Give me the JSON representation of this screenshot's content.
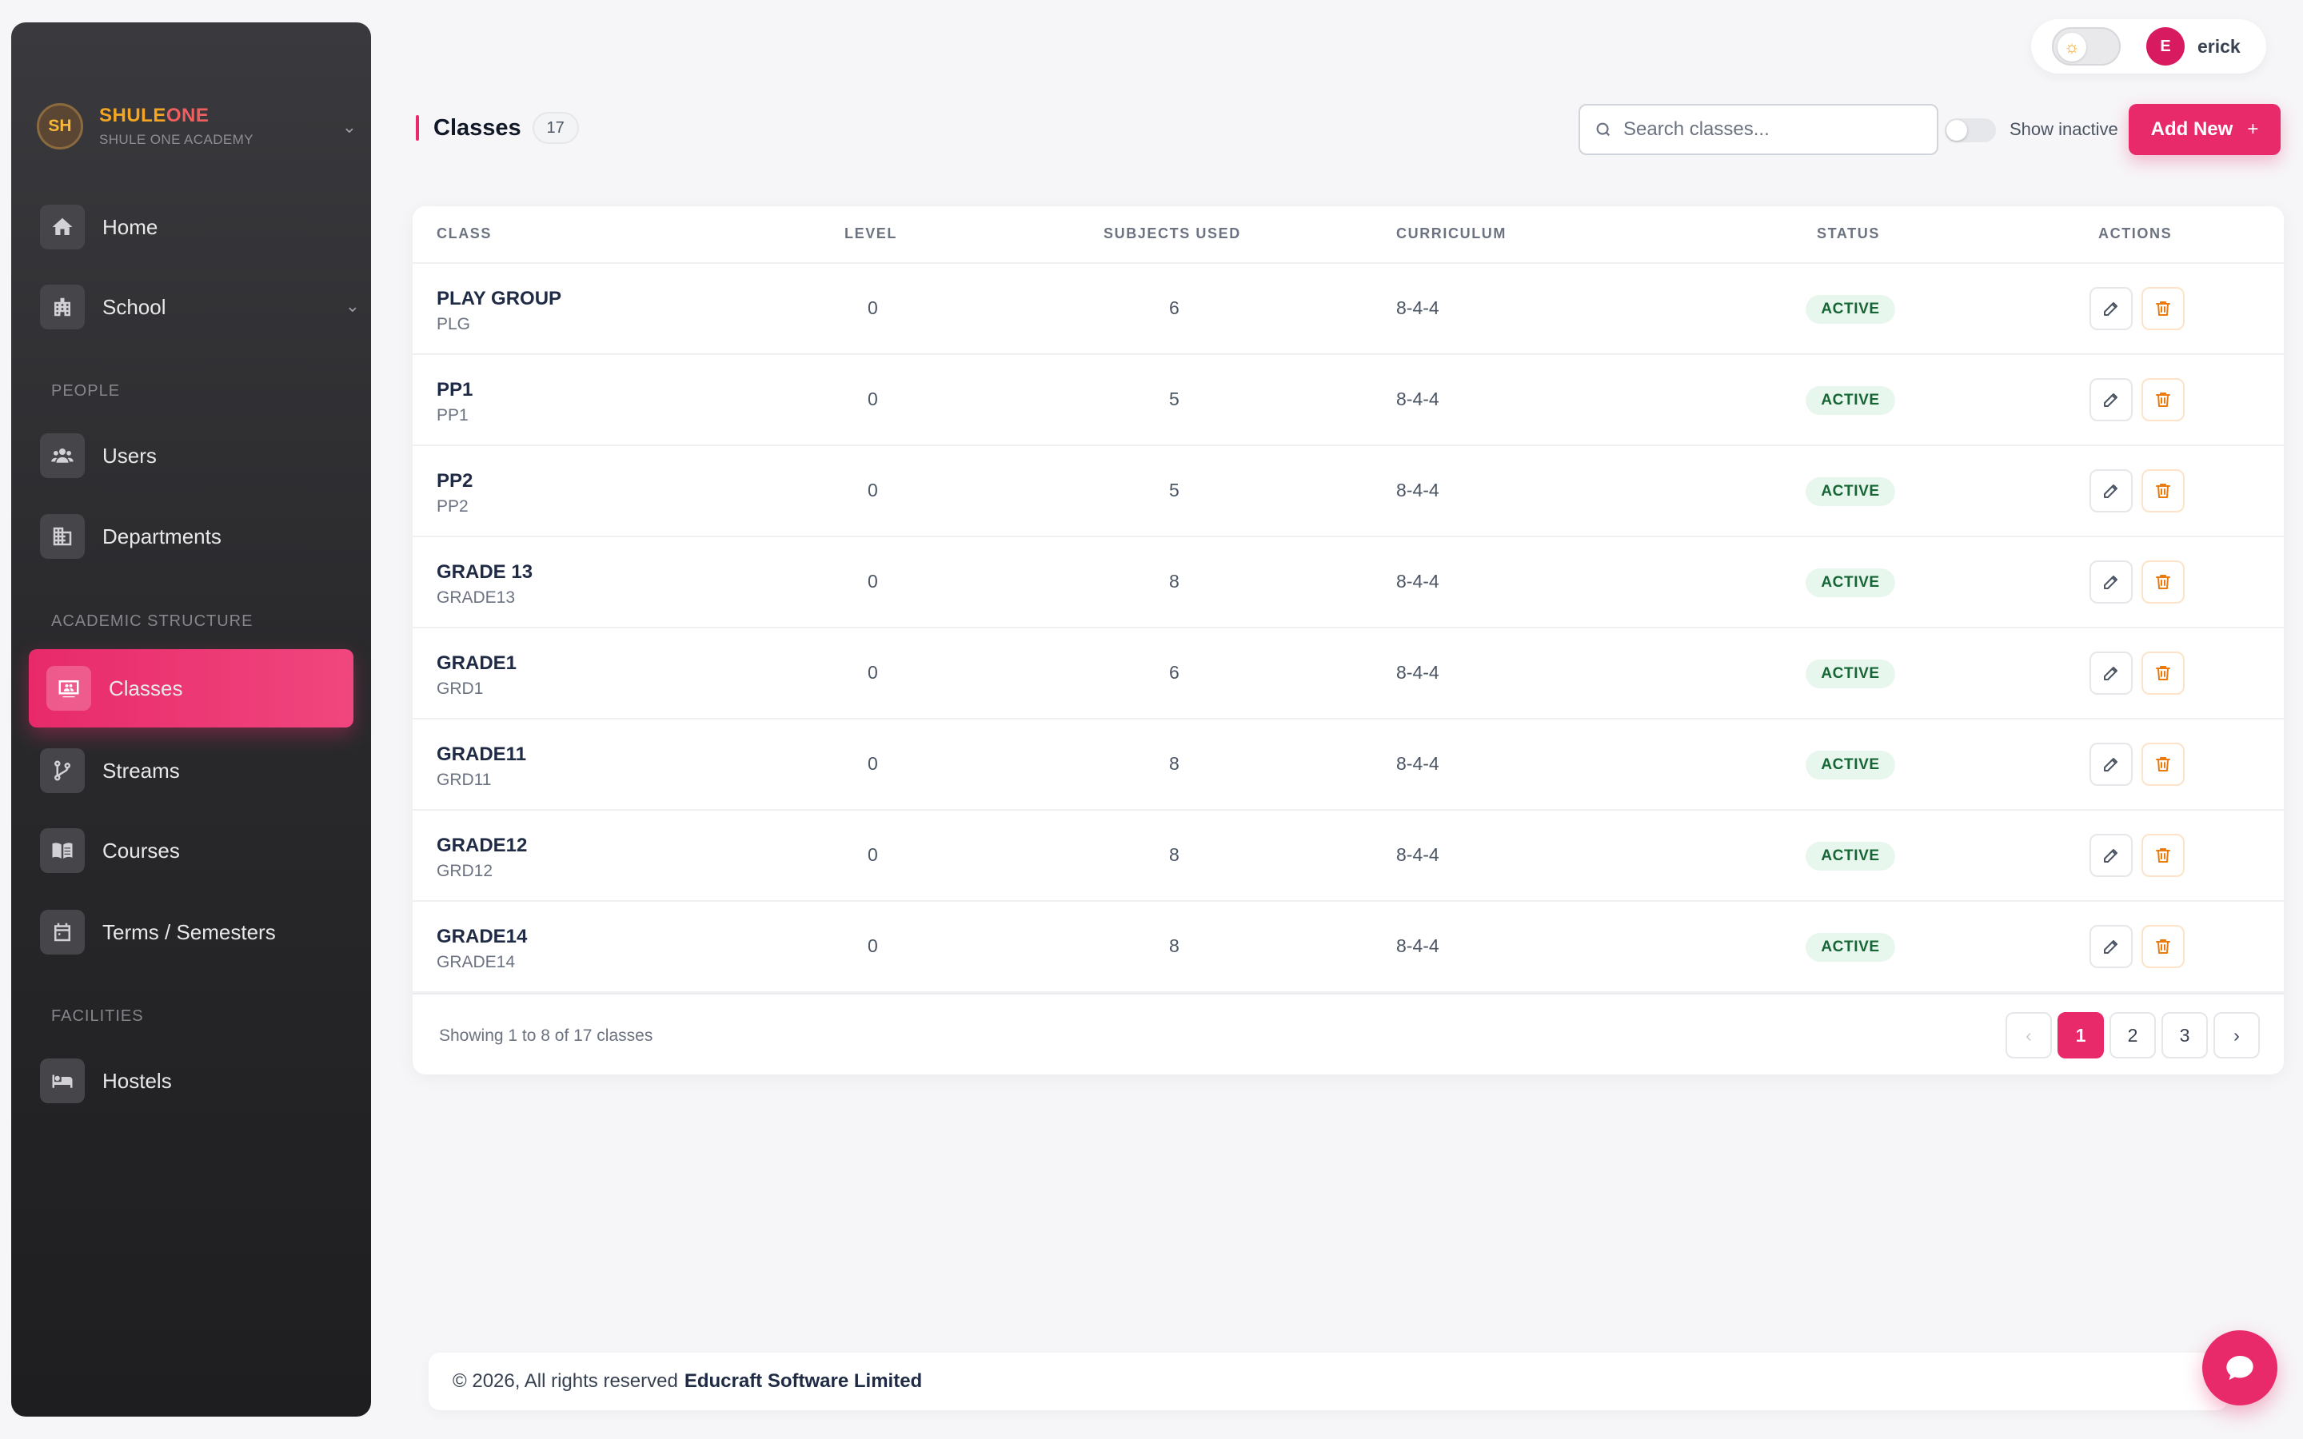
{
  "brand": {
    "initials": "SH",
    "name_a": "SHULE",
    "name_b": "ONE",
    "subtitle": "SHULE ONE ACADEMY"
  },
  "sidebar": {
    "items": [
      {
        "label": "Home",
        "icon": "home-icon"
      },
      {
        "label": "School",
        "icon": "building-icon"
      },
      {
        "label": "Users",
        "icon": "users-icon"
      },
      {
        "label": "Departments",
        "icon": "departments-icon"
      },
      {
        "label": "Classes",
        "icon": "classroom-icon",
        "active": true
      },
      {
        "label": "Streams",
        "icon": "branch-icon"
      },
      {
        "label": "Courses",
        "icon": "book-icon"
      },
      {
        "label": "Terms / Semesters",
        "icon": "calendar-icon"
      },
      {
        "label": "Hostels",
        "icon": "bed-icon"
      }
    ],
    "sections": {
      "people": "PEOPLE",
      "academic": "ACADEMIC STRUCTURE",
      "facilities": "FACILITIES"
    }
  },
  "user": {
    "initial": "E",
    "name": "erick"
  },
  "page": {
    "title": "Classes",
    "count": "17"
  },
  "toolbar": {
    "search_placeholder": "Search classes...",
    "show_inactive_label": "Show inactive",
    "add_label": "Add New",
    "add_plus": "+"
  },
  "table": {
    "headers": [
      "CLASS",
      "LEVEL",
      "SUBJECTS USED",
      "CURRICULUM",
      "STATUS",
      "ACTIONS"
    ],
    "rows": [
      {
        "name": "PLAY GROUP",
        "code": "PLG",
        "level": "0",
        "subjects": "6",
        "curriculum": "8-4-4",
        "status": "ACTIVE"
      },
      {
        "name": "PP1",
        "code": "PP1",
        "level": "0",
        "subjects": "5",
        "curriculum": "8-4-4",
        "status": "ACTIVE"
      },
      {
        "name": "PP2",
        "code": "PP2",
        "level": "0",
        "subjects": "5",
        "curriculum": "8-4-4",
        "status": "ACTIVE"
      },
      {
        "name": "GRADE 13",
        "code": "GRADE13",
        "level": "0",
        "subjects": "8",
        "curriculum": "8-4-4",
        "status": "ACTIVE"
      },
      {
        "name": "GRADE1",
        "code": "GRD1",
        "level": "0",
        "subjects": "6",
        "curriculum": "8-4-4",
        "status": "ACTIVE"
      },
      {
        "name": "GRADE11",
        "code": "GRD11",
        "level": "0",
        "subjects": "8",
        "curriculum": "8-4-4",
        "status": "ACTIVE"
      },
      {
        "name": "GRADE12",
        "code": "GRD12",
        "level": "0",
        "subjects": "8",
        "curriculum": "8-4-4",
        "status": "ACTIVE"
      },
      {
        "name": "GRADE14",
        "code": "GRADE14",
        "level": "0",
        "subjects": "8",
        "curriculum": "8-4-4",
        "status": "ACTIVE"
      }
    ],
    "showing": "Showing 1 to 8 of 17 classes",
    "pages": [
      "1",
      "2",
      "3"
    ],
    "current_page": "1"
  },
  "footer": {
    "copyright": "© 2026, All rights reserved",
    "company": "Educraft Software Limited"
  },
  "colors": {
    "accent": "#e82a6a",
    "active_badge_bg": "#e8f7ee",
    "active_badge_text": "#166534",
    "delete_icon": "#ea7a0c"
  }
}
